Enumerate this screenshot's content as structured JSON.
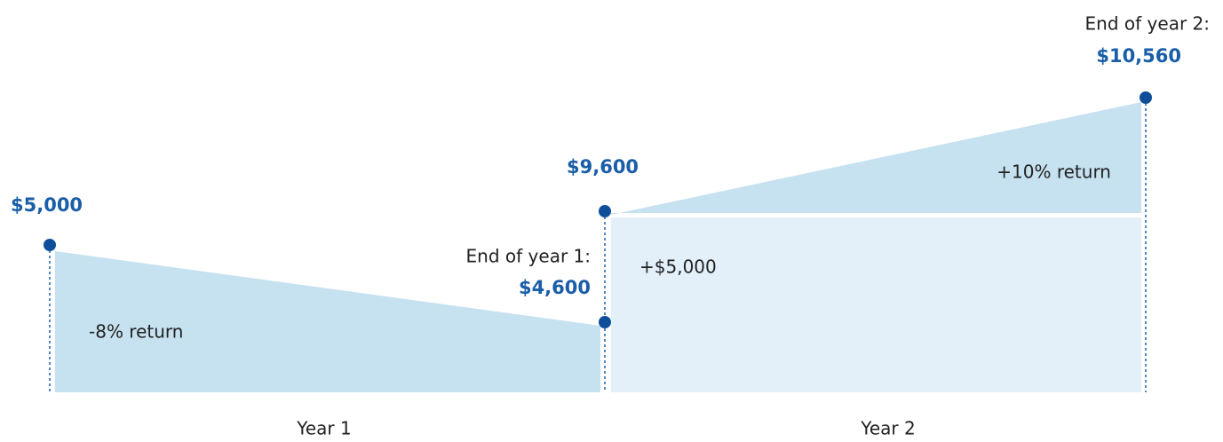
{
  "start": {
    "amount": "$5,000"
  },
  "year1": {
    "label": "Year 1",
    "return": "-8% return",
    "end_label": "End of year 1:",
    "end_amount": "$4,600"
  },
  "year2": {
    "label": "Year 2",
    "start_amount": "$9,600",
    "contribution": "+$5,000",
    "return": "+10% return",
    "end_label": "End of year 2:",
    "end_amount": "$10,560"
  }
}
